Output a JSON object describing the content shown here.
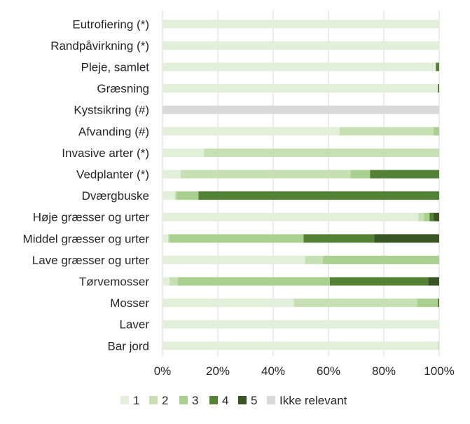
{
  "chart_data": {
    "type": "bar",
    "orientation": "horizontal",
    "stacked": "percent",
    "categories": [
      "Eutrofiering (*)",
      "Randpåvirkning (*)",
      "Pleje, samlet",
      "Græsning",
      "Kystsikring (#)",
      "Afvanding (#)",
      "Invasive arter (*)",
      "Vedplanter (*)",
      "Dværgbuske",
      "Høje græsser og urter",
      "Middel græsser og urter",
      "Lave græsser og urter",
      "Tørvemosser",
      "Mosser",
      "Laver",
      "Bar jord"
    ],
    "series": [
      {
        "name": "1",
        "color": "#e2efda",
        "values": [
          100,
          100,
          98.8,
          99.5,
          0,
          64,
          15,
          6.5,
          4.5,
          92.5,
          2,
          51.5,
          2.5,
          47.5,
          100,
          99.6
        ]
      },
      {
        "name": "2",
        "color": "#c6e0b4",
        "values": [
          0,
          0,
          0,
          0,
          0,
          34,
          85,
          61.5,
          0.5,
          2,
          0.5,
          6.5,
          3,
          44.5,
          0,
          0.4
        ]
      },
      {
        "name": "3",
        "color": "#a9d08e",
        "values": [
          0,
          0,
          0,
          0,
          0,
          2,
          0,
          7,
          8,
          2,
          48.5,
          42,
          55,
          7.5,
          0,
          0
        ]
      },
      {
        "name": "4",
        "color": "#548235",
        "values": [
          0,
          0,
          1.2,
          0.5,
          0,
          0,
          0,
          25,
          87,
          1.5,
          25.5,
          0,
          35.5,
          0.5,
          0,
          0
        ]
      },
      {
        "name": "5",
        "color": "#375623",
        "values": [
          0,
          0,
          0,
          0,
          0,
          0,
          0,
          0,
          0,
          2,
          23.5,
          0,
          4,
          0,
          0,
          0
        ]
      },
      {
        "name": "Ikke relevant",
        "color": "#d9d9d9",
        "values": [
          0,
          0,
          0,
          0,
          100,
          0,
          0,
          0,
          0,
          0,
          0,
          0,
          0,
          0,
          0,
          0
        ]
      }
    ],
    "x_ticks": [
      "0%",
      "20%",
      "40%",
      "60%",
      "80%",
      "100%"
    ],
    "xlim": [
      0,
      100
    ],
    "legend_placement": "bottom",
    "grid": "vertical"
  }
}
